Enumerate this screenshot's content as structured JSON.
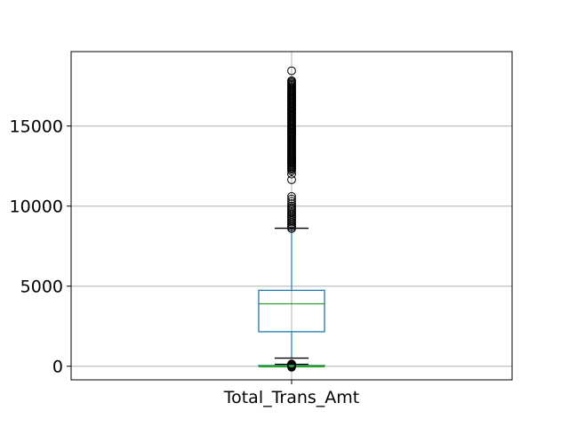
{
  "chart_data": {
    "type": "boxplot",
    "categories": [
      "Total_Trans_Amt"
    ],
    "ylim": [
      -850,
      19650
    ],
    "yticks": [
      0,
      5000,
      10000,
      15000
    ],
    "ytick_labels": [
      "0",
      "5000",
      "10000",
      "15000"
    ],
    "xtick_labels": [
      "Total_Trans_Amt"
    ],
    "grid": true,
    "title": "",
    "xlabel": "",
    "ylabel": "",
    "boxes": [
      {
        "name": "Total_Trans_Amt",
        "q1": 2155,
        "median": 3900,
        "q3": 4740,
        "whisker_low": 510,
        "whisker_high": 8620
      },
      {
        "name": "Total_Trans_Amt",
        "q1": 0,
        "median": 0,
        "q3": 50,
        "whisker_low": 0,
        "whisker_high": 120
      }
    ],
    "fliers": {
      "upper_dense": {
        "from": 12300,
        "to": 17850,
        "step": 70
      },
      "upper_values": [
        8600,
        8700,
        8800,
        8900,
        9000,
        9100,
        9200,
        9300,
        9400,
        9500,
        9600,
        9700,
        9800,
        9900,
        10000,
        10150,
        10300,
        10450,
        10600,
        11650,
        12000,
        12200,
        18450
      ],
      "lower_values": [
        -60,
        -20,
        20,
        60,
        100,
        140
      ]
    },
    "colors": {
      "box": "#1f77b4",
      "median": "#2ca02c",
      "whisker": "#1f77b4",
      "cap": "#000000",
      "flier": "#000000",
      "grid": "#b0b0b0",
      "axes": "#000000"
    }
  }
}
